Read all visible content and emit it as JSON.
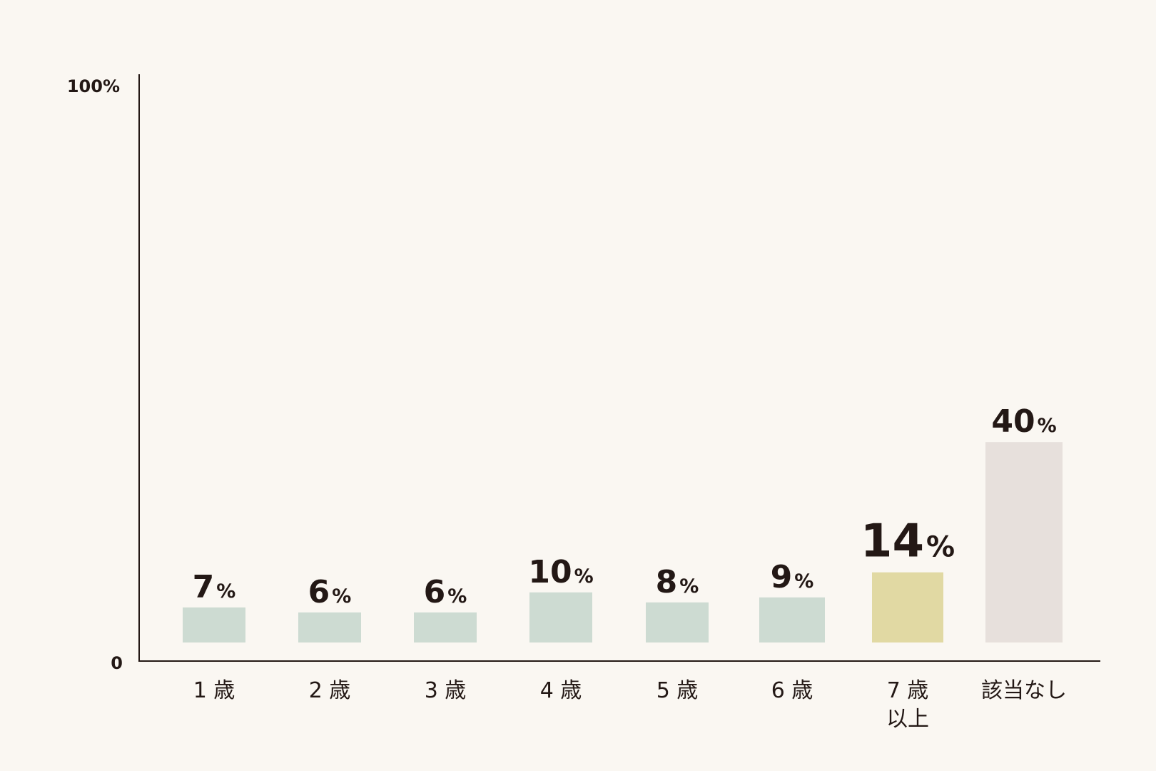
{
  "chart_data": {
    "type": "bar",
    "categories": [
      "1 歳",
      "2 歳",
      "3 歳",
      "4 歳",
      "5 歳",
      "6 歳",
      "7 歳\n以上",
      "該当なし"
    ],
    "values": [
      7,
      6,
      6,
      10,
      8,
      9,
      14,
      40
    ],
    "value_unit": "%",
    "ylim": [
      0,
      100
    ],
    "ytick_labels": [
      "0",
      "100%"
    ],
    "title": "",
    "xlabel": "",
    "ylabel": "",
    "grid": false,
    "legend": "none",
    "colors": [
      "#cddbd2",
      "#cddbd2",
      "#cddbd2",
      "#cddbd2",
      "#cddbd2",
      "#cddbd2",
      "#e1d9a3",
      "#e7e0dc"
    ],
    "highlight_index": 6
  }
}
